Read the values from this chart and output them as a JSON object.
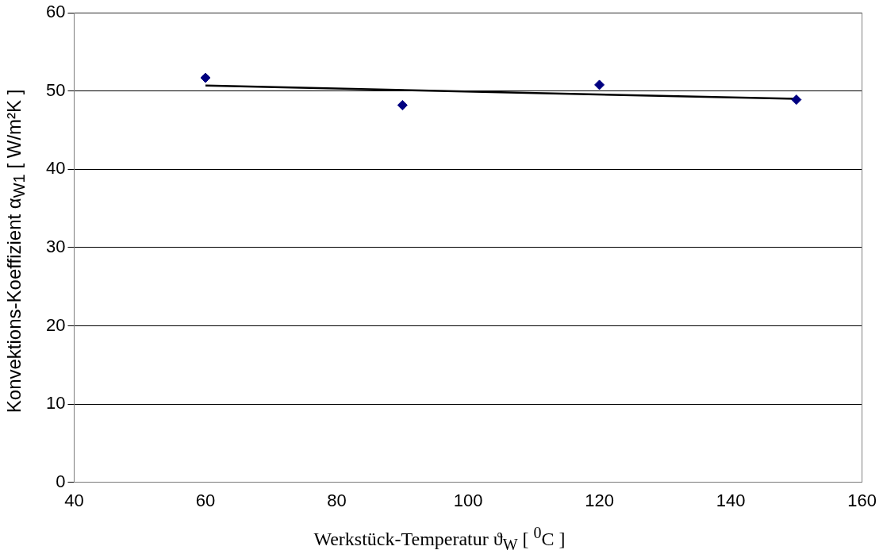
{
  "chart_data": {
    "type": "scatter",
    "xlabel": "Werkstück-Temperatur ϑ$_{W}$ [ $^{0}$C ]",
    "ylabel": "Konvektions-Koeffizient α$_{W1}$ [ W/m²K ]",
    "x": [
      60,
      90,
      120,
      150
    ],
    "series": [
      {
        "type": "scatter",
        "color": "#000080",
        "marker": "diamond",
        "values": [
          51.7,
          48.2,
          50.8,
          48.9
        ]
      },
      {
        "type": "line",
        "color": "#000000",
        "marker": "none",
        "x": [
          60,
          150
        ],
        "values": [
          50.7,
          49.0
        ]
      }
    ],
    "xlim": [
      40,
      160
    ],
    "xticks": [
      40,
      60,
      80,
      100,
      120,
      140,
      160
    ],
    "ylim": [
      0,
      60
    ],
    "yticks": [
      0,
      10,
      20,
      30,
      40,
      50,
      60
    ],
    "grid": "y",
    "legend": false
  }
}
